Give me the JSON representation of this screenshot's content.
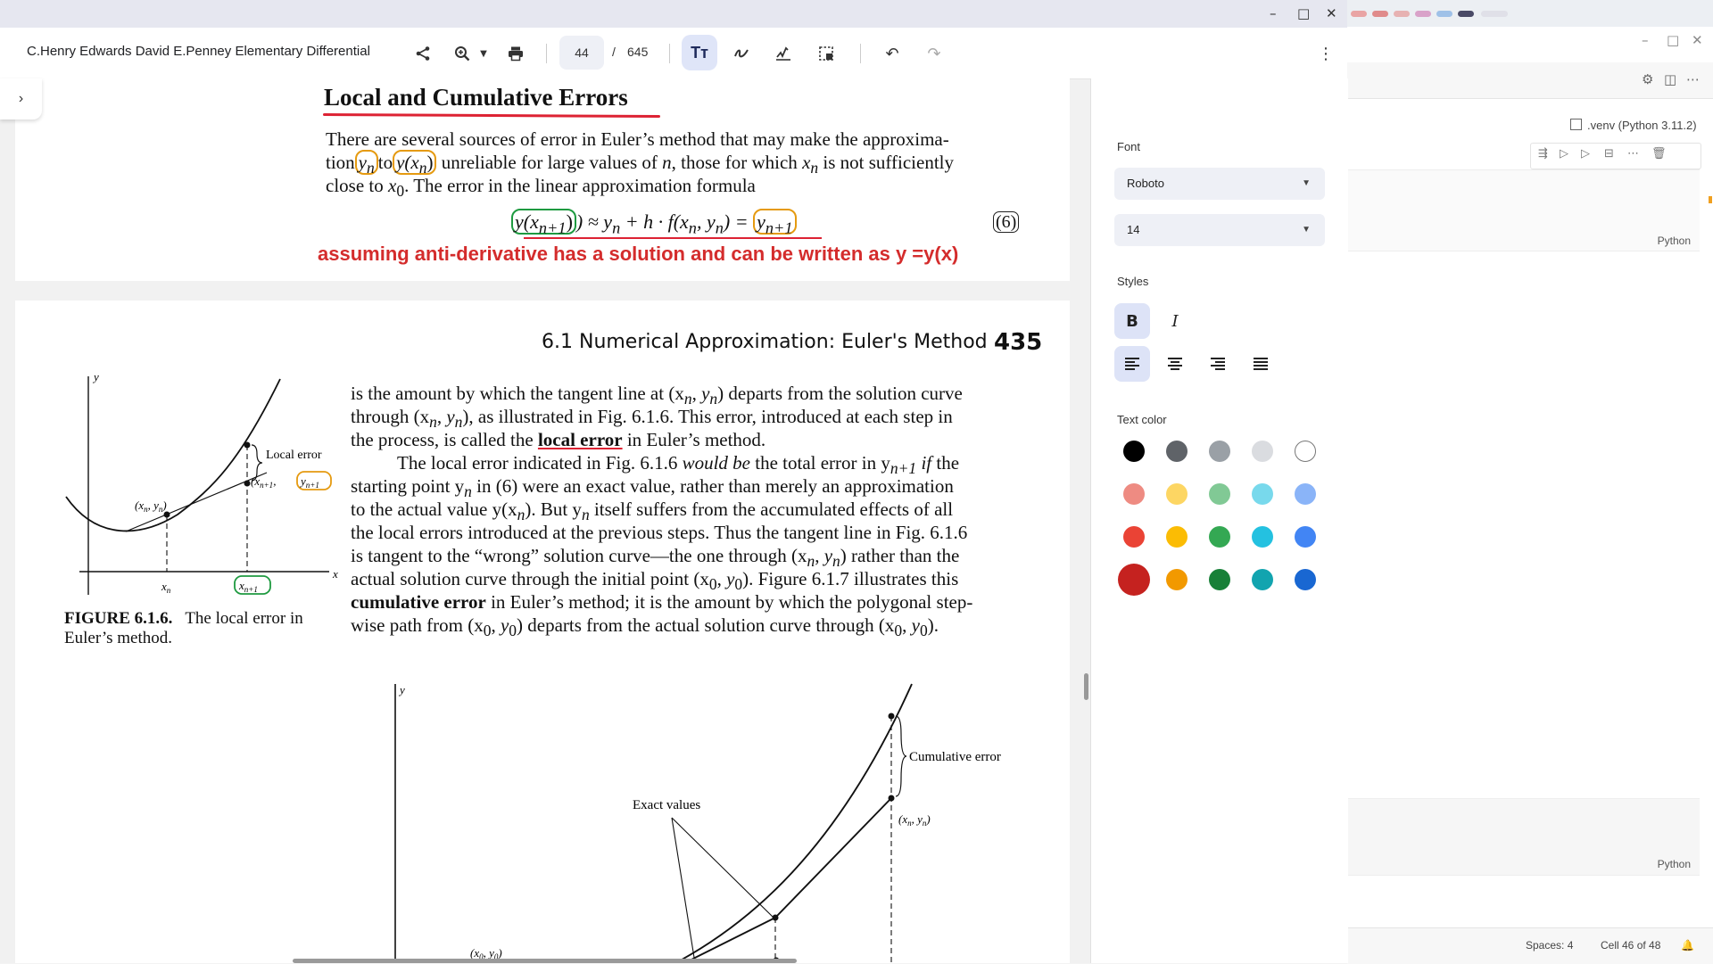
{
  "viewer": {
    "doc_title": "C.Henry Edwards David E.Penney Elementary Differential",
    "page_current": "44",
    "page_separator": "/",
    "page_total": "645",
    "text_tool_label": "Tт"
  },
  "page1": {
    "heading": "Local and Cumulative Errors",
    "lines": [
      "There are several sources of error in Euler’s method that may make the approxima-",
      "unreliable for large values of",
      "close to",
      "The error in the linear approximation formula"
    ],
    "tion_word": "tion",
    "to_word": "to",
    "yn": "y",
    "yxn": "y(x",
    "n_sym": "n",
    "those_for_which": ", those for which",
    "x_sym": "x",
    "not_sufficiently": "is not sufficiently",
    "x0": "x",
    "x0_sub": "0",
    "period": ".",
    "formula_left": "y(x",
    "formula_left_sub": "n+1",
    "formula_mid": ") ≈ y",
    "formula_mid2": " + h · f(x",
    "formula_mid3": ", y",
    "formula_mid4": ") =",
    "formula_right": "y",
    "formula_right_sub": "n+1",
    "eqnum": "(6)",
    "annotation": "assuming anti-derivative has a solution and can be written as y =y(x)"
  },
  "page2": {
    "header": "6.1  Numerical Approximation: Euler's Method",
    "page_number": "435",
    "lines": [
      "is the amount by which the tangent line at (x",
      "through (x",
      "the process, is called the",
      "The local error indicated in Fig. 6.1.6",
      "starting point y",
      "to the actual value y(x",
      "the local errors introduced at the previous steps. Thus the tangent line in Fig. 6.1.6",
      "is tangent to the “wrong” solution curve—the one through (x",
      "actual solution curve through the initial point (x",
      "cumulative error",
      "wise path from (x"
    ],
    "l1_tail": ") departs from the solution curve",
    "l2_tail": "), as illustrated in Fig. 6.1.6. This error, introduced at each step in",
    "local_error": "local error",
    "l3_tail": "in Euler’s method.",
    "would_be": "would be",
    "l4_tail": "the total error in y",
    "if_word": "if",
    "the_word": "the",
    "l5_tail": "in (6) were an exact value, rather than merely an approximation",
    "l6_tail": "). But y",
    "l6_tail2": "itself suffers from the accumulated effects of all",
    "l8_tail": ") rather than the",
    "l9_tail": "). Figure 6.1.7 illustrates this",
    "l10_tail": "in Euler’s method; it is the amount by which the polygonal step-",
    "l11_tail": ") departs from the actual solution curve through (x",
    "l11_end": ").",
    "fig_caption_bold": "FIGURE 6.1.6.",
    "fig_caption": "The local error in Euler’s method.",
    "fig1": {
      "y": "y",
      "x": "x",
      "xn": "x",
      "xn1": "x",
      "local_error": "Local error",
      "pt": "(x",
      "pt2": "(x",
      "yn1": "y",
      "n": "n",
      "n1": "n+1"
    },
    "fig2": {
      "y": "y",
      "cumulative_error": "Cumulative error",
      "exact_values": "Exact values",
      "xnyn": "(x",
      "x0y0": "(x"
    }
  },
  "panel": {
    "font_label": "Font",
    "font_value": "Roboto",
    "size_value": "14",
    "styles_label": "Styles",
    "bold": "B",
    "italic": "I",
    "text_color_label": "Text color",
    "colors": [
      "#000000",
      "#5f6368",
      "#9aa0a6",
      "#dadce0",
      "#ffffff",
      "#ee8b82",
      "#fdd663",
      "#81c995",
      "#78d9ec",
      "#8ab4f8",
      "#ea4335",
      "#fbbc04",
      "#34a853",
      "#24c1e0",
      "#4285f4",
      "#c5221f",
      "#f29900",
      "#188038",
      "#12a4af",
      "#1967d2"
    ]
  },
  "ide": {
    "kernel": ".venv (Python 3.11.2)",
    "lang1": "Python",
    "lang2": "Python",
    "spaces": "Spaces: 4",
    "cell": "Cell 46 of 48"
  }
}
